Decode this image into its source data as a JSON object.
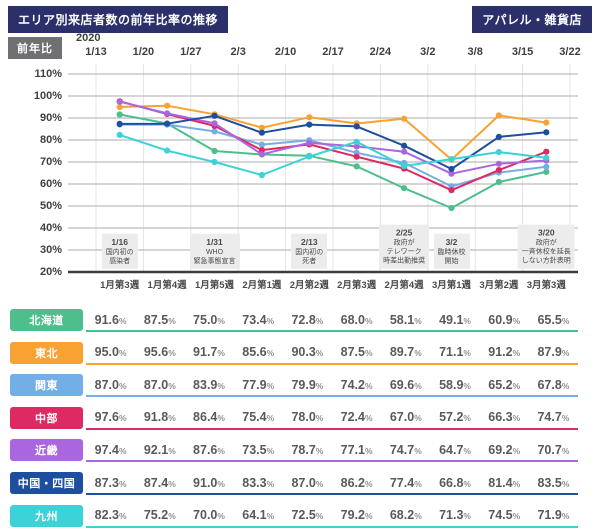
{
  "header": {
    "title": "エリア別来店者数の前年比率の推移",
    "store_type": "アパレル・雑貨店",
    "yoy_badge": "前年比",
    "year_label": "2020",
    "accent_navy": "#2b2f6a",
    "badge_gray": "#6f7073"
  },
  "chart_data": {
    "type": "line",
    "title": "エリア別来店者数の前年比率の推移",
    "subtitle": "アパレル・雑貨店",
    "year": "2020",
    "x_dates": [
      "1/13",
      "1/20",
      "1/27",
      "2/3",
      "2/10",
      "2/17",
      "2/24",
      "3/2",
      "3/8",
      "3/15",
      "3/22"
    ],
    "categories": [
      "1月第3週",
      "1月第4週",
      "1月第5週",
      "2月第1週",
      "2月第2週",
      "2月第3週",
      "2月第4週",
      "3月第1週",
      "3月第2週",
      "3月第3週"
    ],
    "ylabel": "前年比",
    "ylim": [
      20,
      110
    ],
    "ytick_step": 10,
    "ytick_suffix": "%",
    "grid": true,
    "legend_position": "table-row-badges",
    "series": [
      {
        "name": "北海道",
        "color": "#4dbe8c",
        "values": [
          91.6,
          87.5,
          75.0,
          73.4,
          72.8,
          68.0,
          58.1,
          49.1,
          60.9,
          65.5
        ]
      },
      {
        "name": "東北",
        "color": "#f7a233",
        "values": [
          95.0,
          95.6,
          91.7,
          85.6,
          90.3,
          87.5,
          89.7,
          71.1,
          91.2,
          87.9
        ]
      },
      {
        "name": "関東",
        "color": "#74aee6",
        "values": [
          87.0,
          87.0,
          83.9,
          77.9,
          79.9,
          74.2,
          69.6,
          58.9,
          65.2,
          67.8
        ]
      },
      {
        "name": "中部",
        "color": "#dd2a62",
        "values": [
          97.6,
          91.8,
          86.4,
          75.4,
          78.0,
          72.4,
          67.0,
          57.2,
          66.3,
          74.7
        ]
      },
      {
        "name": "近畿",
        "color": "#aa66df",
        "values": [
          97.4,
          92.1,
          87.6,
          73.5,
          78.7,
          77.1,
          74.7,
          64.7,
          69.2,
          70.7
        ]
      },
      {
        "name": "中国・四国",
        "color": "#1d4f9e",
        "values": [
          87.3,
          87.4,
          91.0,
          83.3,
          87.0,
          86.2,
          77.4,
          66.8,
          81.4,
          83.5
        ]
      },
      {
        "name": "九州",
        "color": "#3bd2d8",
        "values": [
          82.3,
          75.2,
          70.0,
          64.1,
          72.5,
          79.2,
          68.2,
          71.3,
          74.5,
          71.9
        ]
      }
    ],
    "annotations": [
      {
        "week_index": 0,
        "lines": [
          "1/16",
          "国内初の",
          "感染者"
        ]
      },
      {
        "week_index": 2,
        "lines": [
          "1/31",
          "WHO",
          "緊急事態宣言"
        ]
      },
      {
        "week_index": 4,
        "lines": [
          "2/13",
          "国内初の",
          "死者"
        ]
      },
      {
        "week_index": 6,
        "lines": [
          "2/25",
          "政府が",
          "テレワーク",
          "時差出勤推奨"
        ]
      },
      {
        "week_index": 7,
        "lines": [
          "3/2",
          "臨時休校",
          "開始"
        ]
      },
      {
        "week_index": 9,
        "lines": [
          "3/20",
          "政府が",
          "一斉休校を延長",
          "しない方針表明"
        ]
      }
    ]
  },
  "table": {
    "value_suffix": "%"
  }
}
